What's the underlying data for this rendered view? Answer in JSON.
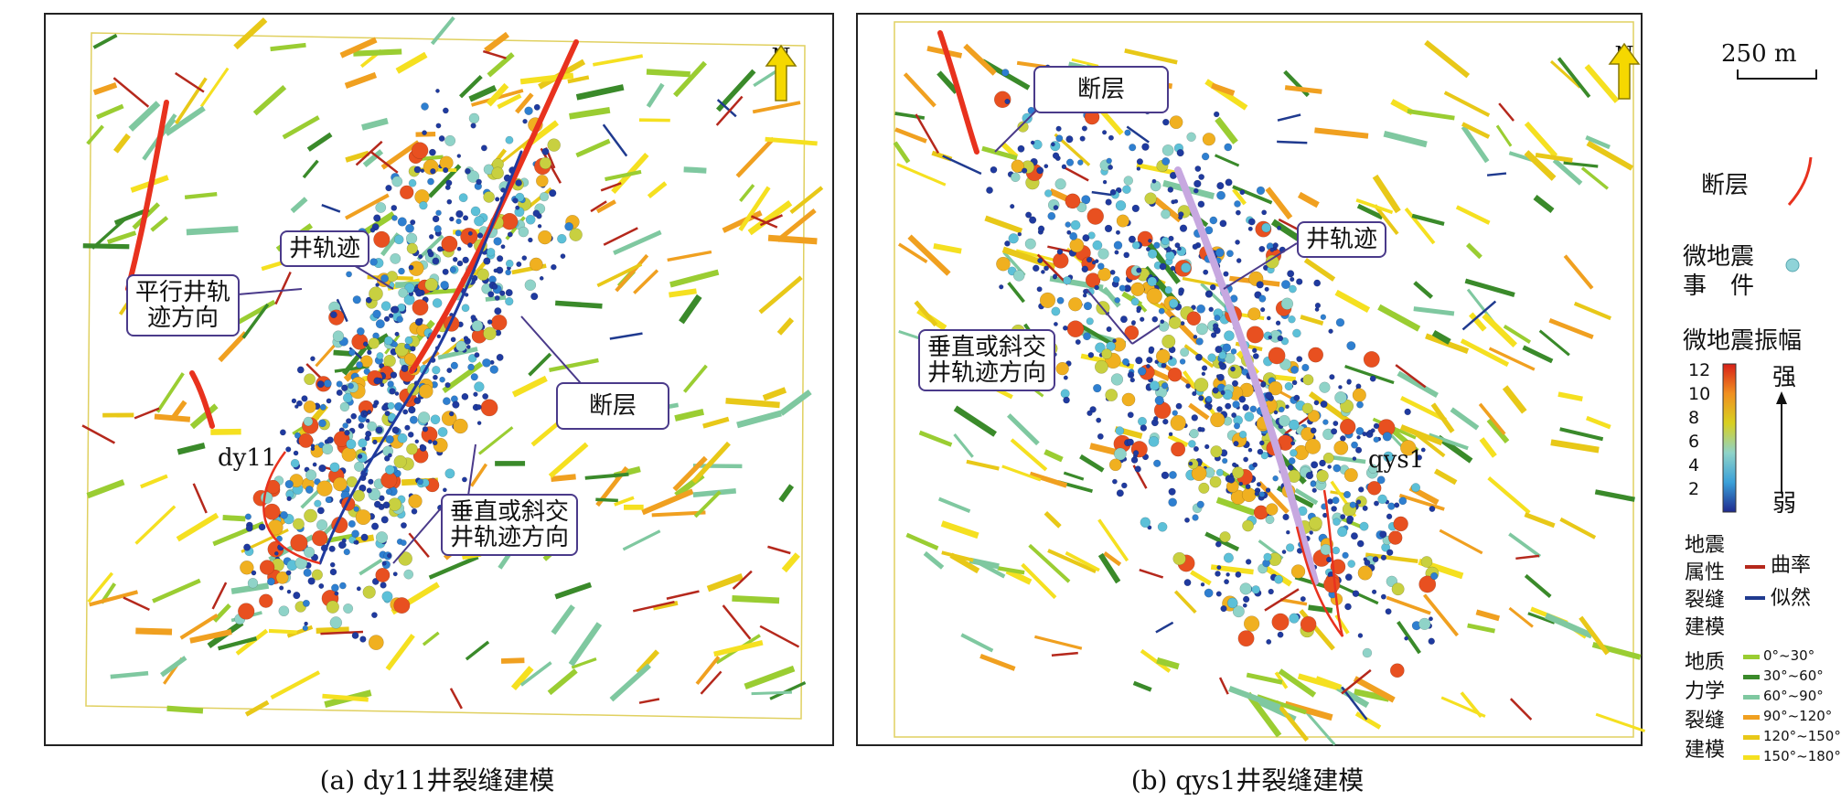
{
  "panels": [
    {
      "caption": "(a) dy11井裂缝建模",
      "north": "N",
      "well_name": "dy11",
      "callouts": {
        "well_track": "井轨迹",
        "parallel": "平行井轨\n迹方向",
        "fault": "断层",
        "perpendicular": "垂直或斜交\n井轨迹方向"
      }
    },
    {
      "caption": "(b) qys1井裂缝建模",
      "north": "N",
      "well_name": "qys1",
      "callouts": {
        "fault": "断层",
        "well_track": "井轨迹",
        "perpendicular": "垂直或斜交\n井轨迹方向"
      }
    }
  ],
  "legend": {
    "scale": "250 m",
    "fault": "断层",
    "microseismic_event_l1": "微地震",
    "microseismic_event_l2": "事　件",
    "amplitude_title": "微地震振幅",
    "colorbar_ticks": [
      "12",
      "10",
      "8",
      "6",
      "4",
      "2"
    ],
    "strong": "强",
    "weak": "弱",
    "seismic_attr_l1": "地震",
    "seismic_attr_l2": "属性",
    "seismic_attr_l3": "裂缝",
    "seismic_attr_l4": "建模",
    "curvature": "曲率",
    "likelihood": "似然",
    "geomech_l1": "地质",
    "geomech_l2": "力学",
    "geomech_l3": "裂缝",
    "geomech_l4": "建模",
    "orientation_classes": [
      "0°~30°",
      "30°~60°",
      "60°~90°",
      "90°~120°",
      "120°~150°",
      "150°~180°"
    ],
    "colors": {
      "fault": "#e8321e",
      "microseismic": "#8fd3d8",
      "curvature": "#b5281c",
      "likelihood": "#1f3a8f",
      "orient_0_30": "#9acd32",
      "orient_30_60": "#3a8a2a",
      "orient_60_90": "#7fc8a0",
      "orient_90_120": "#f0a020",
      "orient_120_150": "#e8c818",
      "orient_150_180": "#f5e020"
    }
  }
}
